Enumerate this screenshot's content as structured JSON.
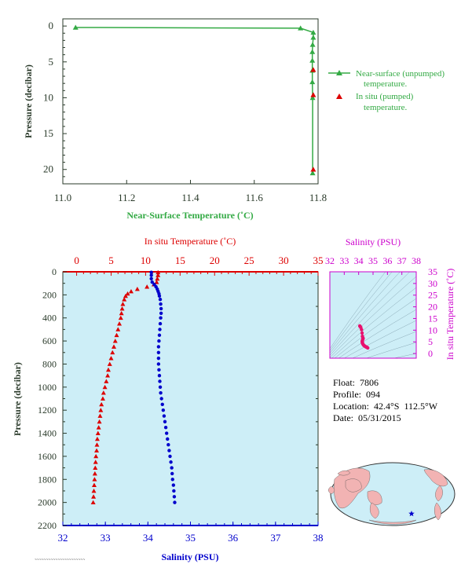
{
  "colors": {
    "near_surface": "#33aa44",
    "in_situ_temp": "#dd0000",
    "salinity": "#0000cc",
    "magenta": "#cc00cc",
    "axis_dark": "#2a3a2a",
    "plot_bg": "#cdeef7",
    "ts_marker": "#e8116e",
    "map_land": "#f2b3b3",
    "map_ocean": "#cdeef7"
  },
  "info": {
    "float": "Float:  7806",
    "profile": "Profile:  094",
    "location": "Location:  42.4°S  112.5°W",
    "date": "Date:  05/31/2015"
  },
  "chart_data": [
    {
      "type": "line",
      "name": "near-surface temperature profile",
      "title": "",
      "xlabel": "Near-Surface Temperature (˚C)",
      "ylabel": "Pressure (decibar)",
      "xlim": [
        11.0,
        11.8
      ],
      "ylim": [
        22,
        -1
      ],
      "xticks": [
        "11.0",
        "11.2",
        "11.4",
        "11.6",
        "11.8"
      ],
      "yticks": [
        "0",
        "5",
        "10",
        "15",
        "20"
      ],
      "legend_position": "right",
      "series": [
        {
          "name": "Near-surface (unpumped) temperature.",
          "marker": "triangle",
          "points": [
            [
              11.04,
              0.2
            ],
            [
              11.745,
              0.3
            ],
            [
              11.785,
              0.9
            ],
            [
              11.785,
              1.6
            ],
            [
              11.783,
              2.6
            ],
            [
              11.782,
              3.6
            ],
            [
              11.782,
              4.8
            ],
            [
              11.782,
              6.2
            ],
            [
              11.782,
              7.8
            ],
            [
              11.783,
              10.0
            ],
            [
              11.783,
              20.5
            ]
          ]
        },
        {
          "name": "In situ (pumped) temperature.",
          "marker": "triangle",
          "points": [
            [
              11.785,
              6.1
            ],
            [
              11.785,
              9.6
            ],
            [
              11.785,
              20.0
            ]
          ]
        }
      ]
    },
    {
      "type": "scatter",
      "name": "temperature and salinity profile",
      "title": "",
      "xlabel_top": "In situ Temperature (˚C)",
      "xlabel_bottom": "Salinity (PSU)",
      "ylabel": "Pressure (decibar)",
      "temp_xlim": [
        -2,
        35
      ],
      "sal_xlim": [
        32,
        38
      ],
      "ylim": [
        2200,
        0
      ],
      "temp_ticks": [
        "0",
        "5",
        "10",
        "15",
        "20",
        "25",
        "30",
        "35"
      ],
      "sal_ticks": [
        "32",
        "33",
        "34",
        "35",
        "36",
        "37",
        "38"
      ],
      "yticks": [
        "0",
        "200",
        "400",
        "600",
        "800",
        "1000",
        "1200",
        "1400",
        "1600",
        "1800",
        "2000",
        "2200"
      ],
      "grid": false,
      "series": [
        {
          "name": "In situ Temperature",
          "marker": "triangle",
          "pressure": [
            5,
            30,
            60,
            90,
            110,
            130,
            150,
            170,
            190,
            210,
            240,
            280,
            320,
            360,
            400,
            450,
            500,
            550,
            600,
            650,
            700,
            750,
            800,
            850,
            900,
            950,
            1000,
            1050,
            1100,
            1150,
            1200,
            1250,
            1300,
            1350,
            1400,
            1450,
            1500,
            1550,
            1600,
            1650,
            1700,
            1750,
            1800,
            1850,
            1900,
            1950,
            2000
          ],
          "values": [
            11.8,
            11.8,
            11.7,
            11.6,
            11.2,
            10.2,
            8.8,
            7.9,
            7.4,
            7.1,
            6.9,
            6.7,
            6.6,
            6.5,
            6.4,
            6.2,
            6.0,
            5.8,
            5.6,
            5.4,
            5.2,
            5.0,
            4.8,
            4.6,
            4.5,
            4.3,
            4.1,
            3.9,
            3.8,
            3.6,
            3.5,
            3.4,
            3.3,
            3.2,
            3.1,
            3.0,
            2.95,
            2.9,
            2.8,
            2.75,
            2.7,
            2.65,
            2.6,
            2.55,
            2.5,
            2.45,
            2.4
          ]
        },
        {
          "name": "Salinity",
          "marker": "circle",
          "pressure": [
            5,
            30,
            60,
            90,
            110,
            130,
            150,
            170,
            190,
            210,
            240,
            280,
            320,
            360,
            400,
            450,
            500,
            550,
            600,
            650,
            700,
            750,
            800,
            850,
            900,
            950,
            1000,
            1050,
            1100,
            1150,
            1200,
            1250,
            1300,
            1350,
            1400,
            1450,
            1500,
            1550,
            1600,
            1650,
            1700,
            1750,
            1800,
            1850,
            1900,
            1950,
            2000
          ],
          "values": [
            34.08,
            34.08,
            34.08,
            34.1,
            34.15,
            34.19,
            34.22,
            34.24,
            34.26,
            34.27,
            34.29,
            34.3,
            34.31,
            34.31,
            34.3,
            34.29,
            34.28,
            34.27,
            34.26,
            34.25,
            34.25,
            34.25,
            34.25,
            34.26,
            34.27,
            34.28,
            34.29,
            34.3,
            34.32,
            34.34,
            34.36,
            34.38,
            34.4,
            34.42,
            34.44,
            34.46,
            34.48,
            34.5,
            34.52,
            34.54,
            34.56,
            34.57,
            34.58,
            34.6,
            34.61,
            34.62,
            34.63
          ]
        }
      ]
    },
    {
      "type": "scatter",
      "name": "T-S diagram",
      "title": "",
      "xlabel": "Salinity (PSU)",
      "ylabel": "In situ Temperature (˚C)",
      "xlim": [
        32,
        38
      ],
      "ylim": [
        -2,
        35
      ],
      "xticks": [
        "32",
        "33",
        "34",
        "35",
        "36",
        "37",
        "38"
      ],
      "yticks": [
        "0",
        "5",
        "10",
        "15",
        "20",
        "25",
        "30",
        "35"
      ],
      "points": [
        [
          34.08,
          11.8
        ],
        [
          34.1,
          11.6
        ],
        [
          34.15,
          11.2
        ],
        [
          34.2,
          10.2
        ],
        [
          34.24,
          8.8
        ],
        [
          34.26,
          7.4
        ],
        [
          34.3,
          6.7
        ],
        [
          34.31,
          6.4
        ],
        [
          34.28,
          6.0
        ],
        [
          34.26,
          5.6
        ],
        [
          34.25,
          5.2
        ],
        [
          34.25,
          4.8
        ],
        [
          34.27,
          4.5
        ],
        [
          34.29,
          4.1
        ],
        [
          34.32,
          3.8
        ],
        [
          34.36,
          3.5
        ],
        [
          34.4,
          3.3
        ],
        [
          34.44,
          3.1
        ],
        [
          34.48,
          2.95
        ],
        [
          34.52,
          2.8
        ],
        [
          34.56,
          2.7
        ],
        [
          34.6,
          2.55
        ],
        [
          34.63,
          2.4
        ]
      ]
    }
  ],
  "map": {
    "type": "world-map",
    "float_marker": "star"
  }
}
